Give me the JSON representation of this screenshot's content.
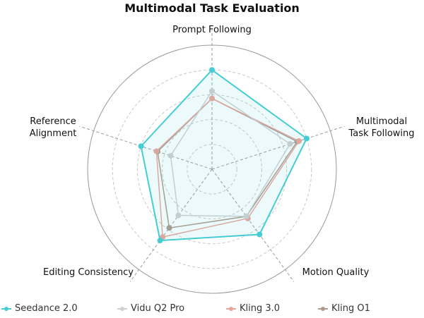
{
  "chart_data": {
    "type": "radar",
    "title": "Multimodal Task Evaluation",
    "axes": [
      "Prompt Following",
      "Multimodal\nTask Following",
      "Motion Quality",
      "Editing Consistency",
      "Reference\nAlignment"
    ],
    "range": [
      0,
      100
    ],
    "grid": true,
    "legend_position": "bottom",
    "series": [
      {
        "name": "Seedance 2.0",
        "color": "#45cdd3",
        "values": [
          80,
          80,
          65,
          71,
          60
        ]
      },
      {
        "name": "Vidu Q2 Pro",
        "color": "#d0d0d0",
        "values": [
          63,
          66,
          47,
          46,
          35
        ]
      },
      {
        "name": "Kling 3.0",
        "color": "#eba49b",
        "values": [
          57,
          73.5,
          49,
          67.5,
          47
        ]
      },
      {
        "name": "Kling O1",
        "color": "#ae998b",
        "values": [
          57,
          72,
          47,
          58.5,
          46
        ]
      }
    ]
  }
}
